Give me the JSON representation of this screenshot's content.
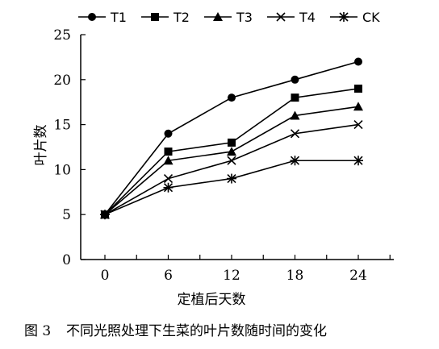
{
  "chart_data": {
    "type": "line",
    "title": "",
    "xlabel": "定植后天数",
    "ylabel": "叶片数",
    "x": [
      0,
      6,
      12,
      18,
      24
    ],
    "x_ticks": [
      "0",
      "6",
      "12",
      "18",
      "24"
    ],
    "y_ticks": [
      "0",
      "5",
      "10",
      "15",
      "20",
      "25"
    ],
    "ylim": [
      0,
      25
    ],
    "grid": false,
    "legend_position": "top",
    "series": [
      {
        "name": "T1",
        "marker": "circle",
        "values": [
          5,
          14,
          18,
          20,
          22
        ]
      },
      {
        "name": "T2",
        "marker": "square",
        "values": [
          5,
          12,
          13,
          18,
          19
        ]
      },
      {
        "name": "T3",
        "marker": "triangle",
        "values": [
          5,
          11,
          12,
          16,
          17
        ]
      },
      {
        "name": "T4",
        "marker": "x",
        "values": [
          5,
          9,
          11,
          14,
          15
        ]
      },
      {
        "name": "CK",
        "marker": "asterisk",
        "values": [
          5,
          8,
          9,
          11,
          11
        ]
      }
    ]
  },
  "caption": {
    "figure_number": "图 3",
    "text": "不同光照处理下生菜的叶片数随时间的变化"
  }
}
